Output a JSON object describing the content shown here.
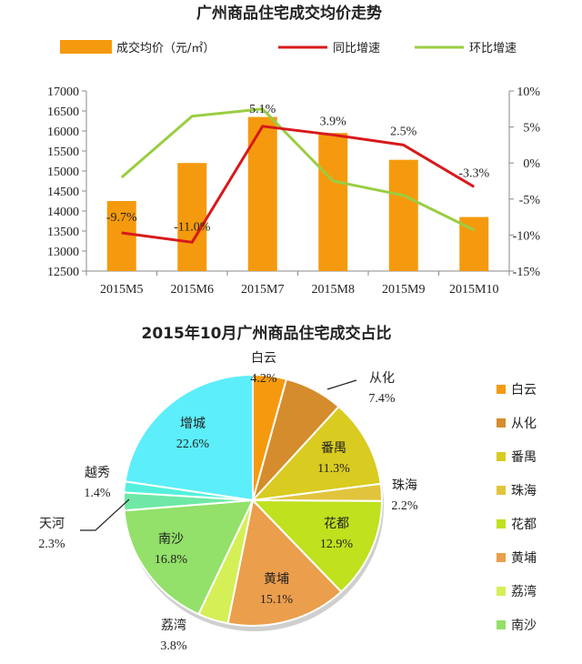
{
  "chart_data": [
    {
      "type": "bar",
      "title": "广州商品住宅成交均价走势",
      "categories": [
        "2015M5",
        "2015M6",
        "2015M7",
        "2015M8",
        "2015M9",
        "2015M10"
      ],
      "series": [
        {
          "name": "成交均价（元/㎡）",
          "kind": "bar",
          "axis": "left",
          "color": "#F59A0E",
          "values": [
            14250,
            15200,
            16350,
            15950,
            15280,
            13850
          ]
        },
        {
          "name": "同比增速",
          "kind": "line",
          "axis": "right",
          "color": "#D7191C",
          "values": [
            -9.7,
            -11.0,
            5.1,
            3.9,
            2.5,
            -3.3
          ],
          "labels": [
            "-9.7%",
            "-11.0%",
            "5.1%",
            "3.9%",
            "2.5%",
            "-3.3%"
          ]
        },
        {
          "name": "环比增速",
          "kind": "line",
          "axis": "right",
          "color": "#9ACD42",
          "values": [
            -2.0,
            6.5,
            7.5,
            -2.5,
            -4.5,
            -9.3
          ]
        }
      ],
      "ylim": [
        12500,
        17000
      ],
      "yticks": [
        "17000",
        "16500",
        "16000",
        "15500",
        "15000",
        "14500",
        "14000",
        "13500",
        "13000",
        "12500"
      ],
      "ylim_right": [
        -15,
        10
      ],
      "yticks_right": [
        "10%",
        "5%",
        "0%",
        "-5%",
        "-10%",
        "-15%"
      ],
      "xlabel": "",
      "ylabel": "",
      "legend": "top"
    },
    {
      "type": "pie",
      "title": "2015年10月广州商品住宅成交占比",
      "slices": [
        {
          "name": "白云",
          "value": 4.2,
          "label": "4.2%",
          "color": "#F59A0E"
        },
        {
          "name": "从化",
          "value": 7.4,
          "label": "7.4%",
          "color": "#D58C2C"
        },
        {
          "name": "番禺",
          "value": 11.3,
          "label": "11.3%",
          "color": "#D9CB20"
        },
        {
          "name": "珠海",
          "value": 2.2,
          "label": "2.2%",
          "color": "#E2C43C"
        },
        {
          "name": "花都",
          "value": 12.9,
          "label": "12.9%",
          "color": "#BFE11E"
        },
        {
          "name": "黄埔",
          "value": 15.1,
          "label": "15.1%",
          "color": "#EB9E4C"
        },
        {
          "name": "荔湾",
          "value": 3.8,
          "label": "3.8%",
          "color": "#D5EF56"
        },
        {
          "name": "南沙",
          "value": 16.8,
          "label": "16.8%",
          "color": "#93E06A"
        },
        {
          "name": "天河",
          "value": 2.3,
          "label": "2.3%",
          "color": "#6FE8A6"
        },
        {
          "name": "越秀",
          "value": 1.4,
          "label": "1.4%",
          "color": "#55F0DC"
        },
        {
          "name": "增城",
          "value": 22.6,
          "label": "22.6%",
          "color": "#5CEEFA"
        }
      ],
      "legend": "right",
      "legend_items": [
        "白云",
        "从化",
        "番禺",
        "珠海",
        "花都",
        "黄埔",
        "荔湾",
        "南沙"
      ]
    }
  ]
}
